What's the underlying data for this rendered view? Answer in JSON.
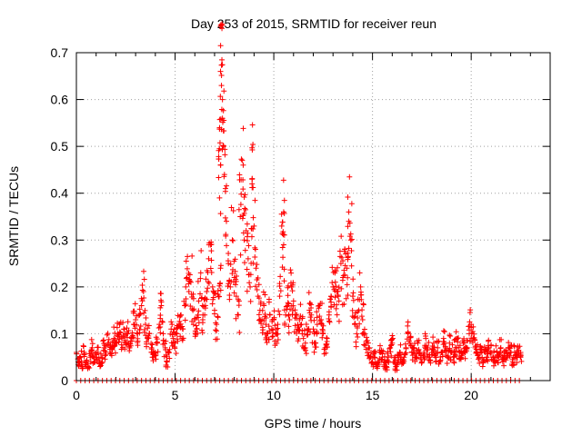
{
  "chart_data": {
    "type": "scatter",
    "title": "Day 253 of 2015, SRMTID for receiver reun",
    "xlabel": "GPS time / hours",
    "ylabel": "SRMTID / TECUs",
    "xlim": [
      0,
      24
    ],
    "ylim": [
      0,
      0.7
    ],
    "x_ticks": [
      "0",
      "5",
      "10",
      "15",
      "20"
    ],
    "x_tick_values": [
      0,
      5,
      10,
      15,
      20
    ],
    "y_ticks": [
      "0",
      "0.1",
      "0.2",
      "0.3",
      "0.4",
      "0.5",
      "0.6",
      "0.7"
    ],
    "y_tick_values": [
      0,
      0.1,
      0.2,
      0.3,
      0.4,
      0.5,
      0.6,
      0.7
    ],
    "grid": true,
    "marker": "+",
    "color": "#ff0000",
    "series": [
      {
        "name": "SRMTID",
        "points": [
          [
            0.0,
            0.06
          ],
          [
            0.1,
            0.04
          ],
          [
            0.2,
            0.05
          ],
          [
            0.3,
            0.03
          ],
          [
            0.4,
            0.06
          ],
          [
            0.5,
            0.04
          ],
          [
            0.6,
            0.03
          ],
          [
            0.7,
            0.05
          ],
          [
            0.8,
            0.07
          ],
          [
            0.9,
            0.04
          ],
          [
            1.0,
            0.05
          ],
          [
            1.1,
            0.06
          ],
          [
            1.2,
            0.04
          ],
          [
            1.3,
            0.05
          ],
          [
            1.4,
            0.07
          ],
          [
            1.5,
            0.06
          ],
          [
            1.6,
            0.08
          ],
          [
            1.7,
            0.06
          ],
          [
            1.8,
            0.07
          ],
          [
            1.9,
            0.09
          ],
          [
            2.0,
            0.08
          ],
          [
            2.1,
            0.1
          ],
          [
            2.2,
            0.12
          ],
          [
            2.3,
            0.09
          ],
          [
            2.4,
            0.11
          ],
          [
            2.5,
            0.08
          ],
          [
            2.6,
            0.1
          ],
          [
            2.7,
            0.07
          ],
          [
            2.8,
            0.09
          ],
          [
            2.9,
            0.12
          ],
          [
            3.0,
            0.13
          ],
          [
            3.1,
            0.1
          ],
          [
            3.2,
            0.14
          ],
          [
            3.3,
            0.16
          ],
          [
            3.4,
            0.19
          ],
          [
            3.5,
            0.12
          ],
          [
            3.6,
            0.09
          ],
          [
            3.7,
            0.1
          ],
          [
            3.8,
            0.07
          ],
          [
            3.9,
            0.05
          ],
          [
            4.0,
            0.06
          ],
          [
            4.1,
            0.08
          ],
          [
            4.2,
            0.12
          ],
          [
            4.3,
            0.16
          ],
          [
            4.4,
            0.1
          ],
          [
            4.5,
            0.07
          ],
          [
            4.6,
            0.04
          ],
          [
            4.7,
            0.06
          ],
          [
            4.8,
            0.11
          ],
          [
            4.9,
            0.09
          ],
          [
            5.0,
            0.08
          ],
          [
            5.1,
            0.1
          ],
          [
            5.2,
            0.12
          ],
          [
            5.3,
            0.14
          ],
          [
            5.4,
            0.11
          ],
          [
            5.5,
            0.16
          ],
          [
            5.6,
            0.22
          ],
          [
            5.7,
            0.19
          ],
          [
            5.8,
            0.21
          ],
          [
            5.9,
            0.15
          ],
          [
            6.0,
            0.13
          ],
          [
            6.1,
            0.11
          ],
          [
            6.2,
            0.17
          ],
          [
            6.3,
            0.23
          ],
          [
            6.4,
            0.13
          ],
          [
            6.5,
            0.14
          ],
          [
            6.6,
            0.19
          ],
          [
            6.7,
            0.26
          ],
          [
            6.8,
            0.29
          ],
          [
            6.9,
            0.2
          ],
          [
            7.0,
            0.15
          ],
          [
            7.1,
            0.12
          ],
          [
            7.2,
            0.18
          ],
          [
            7.3,
            0.24
          ],
          [
            7.4,
            0.6
          ],
          [
            7.5,
            0.44
          ],
          [
            7.6,
            0.34
          ],
          [
            7.7,
            0.25
          ],
          [
            7.8,
            0.2
          ],
          [
            7.9,
            0.3
          ],
          [
            8.0,
            0.22
          ],
          [
            8.1,
            0.18
          ],
          [
            8.2,
            0.14
          ],
          [
            8.3,
            0.35
          ],
          [
            8.4,
            0.47
          ],
          [
            8.5,
            0.3
          ],
          [
            8.6,
            0.32
          ],
          [
            8.7,
            0.26
          ],
          [
            8.8,
            0.2
          ],
          [
            8.9,
            0.42
          ],
          [
            9.0,
            0.33
          ],
          [
            9.1,
            0.24
          ],
          [
            9.2,
            0.18
          ],
          [
            9.3,
            0.15
          ],
          [
            9.4,
            0.13
          ],
          [
            9.5,
            0.16
          ],
          [
            9.6,
            0.12
          ],
          [
            9.7,
            0.1
          ],
          [
            9.8,
            0.14
          ],
          [
            9.9,
            0.11
          ],
          [
            10.0,
            0.13
          ],
          [
            10.1,
            0.1
          ],
          [
            10.2,
            0.12
          ],
          [
            10.3,
            0.18
          ],
          [
            10.4,
            0.33
          ],
          [
            10.5,
            0.29
          ],
          [
            10.6,
            0.14
          ],
          [
            10.7,
            0.16
          ],
          [
            10.8,
            0.13
          ],
          [
            10.9,
            0.2
          ],
          [
            11.0,
            0.17
          ],
          [
            11.1,
            0.14
          ],
          [
            11.2,
            0.11
          ],
          [
            11.3,
            0.13
          ],
          [
            11.4,
            0.12
          ],
          [
            11.5,
            0.09
          ],
          [
            11.6,
            0.08
          ],
          [
            11.7,
            0.11
          ],
          [
            11.8,
            0.15
          ],
          [
            11.9,
            0.14
          ],
          [
            12.0,
            0.11
          ],
          [
            12.1,
            0.08
          ],
          [
            12.2,
            0.12
          ],
          [
            12.3,
            0.16
          ],
          [
            12.4,
            0.13
          ],
          [
            12.5,
            0.1
          ],
          [
            12.6,
            0.07
          ],
          [
            12.7,
            0.09
          ],
          [
            12.8,
            0.14
          ],
          [
            12.9,
            0.18
          ],
          [
            13.0,
            0.2
          ],
          [
            13.1,
            0.23
          ],
          [
            13.2,
            0.19
          ],
          [
            13.3,
            0.17
          ],
          [
            13.4,
            0.25
          ],
          [
            13.5,
            0.22
          ],
          [
            13.6,
            0.28
          ],
          [
            13.7,
            0.24
          ],
          [
            13.8,
            0.34
          ],
          [
            13.9,
            0.3
          ],
          [
            14.0,
            0.18
          ],
          [
            14.1,
            0.12
          ],
          [
            14.2,
            0.1
          ],
          [
            14.3,
            0.15
          ],
          [
            14.4,
            0.2
          ],
          [
            14.5,
            0.13
          ],
          [
            14.6,
            0.1
          ],
          [
            14.7,
            0.08
          ],
          [
            14.8,
            0.07
          ],
          [
            14.9,
            0.05
          ],
          [
            15.0,
            0.04
          ],
          [
            15.1,
            0.05
          ],
          [
            15.2,
            0.03
          ],
          [
            15.3,
            0.04
          ],
          [
            15.4,
            0.06
          ],
          [
            15.5,
            0.05
          ],
          [
            15.6,
            0.04
          ],
          [
            15.7,
            0.03
          ],
          [
            15.8,
            0.05
          ],
          [
            15.9,
            0.07
          ],
          [
            16.0,
            0.08
          ],
          [
            16.1,
            0.04
          ],
          [
            16.2,
            0.03
          ],
          [
            16.3,
            0.05
          ],
          [
            16.4,
            0.06
          ],
          [
            16.5,
            0.04
          ],
          [
            16.6,
            0.05
          ],
          [
            16.7,
            0.07
          ],
          [
            16.8,
            0.1
          ],
          [
            16.9,
            0.08
          ],
          [
            17.0,
            0.06
          ],
          [
            17.1,
            0.07
          ],
          [
            17.2,
            0.05
          ],
          [
            17.3,
            0.08
          ],
          [
            17.4,
            0.06
          ],
          [
            17.5,
            0.04
          ],
          [
            17.6,
            0.06
          ],
          [
            17.7,
            0.09
          ],
          [
            17.8,
            0.07
          ],
          [
            17.9,
            0.05
          ],
          [
            18.0,
            0.06
          ],
          [
            18.1,
            0.08
          ],
          [
            18.2,
            0.05
          ],
          [
            18.3,
            0.07
          ],
          [
            18.4,
            0.04
          ],
          [
            18.5,
            0.06
          ],
          [
            18.6,
            0.09
          ],
          [
            18.7,
            0.07
          ],
          [
            18.8,
            0.05
          ],
          [
            18.9,
            0.08
          ],
          [
            19.0,
            0.06
          ],
          [
            19.1,
            0.05
          ],
          [
            19.2,
            0.07
          ],
          [
            19.3,
            0.09
          ],
          [
            19.4,
            0.06
          ],
          [
            19.5,
            0.05
          ],
          [
            19.6,
            0.08
          ],
          [
            19.7,
            0.06
          ],
          [
            19.8,
            0.07
          ],
          [
            19.9,
            0.1
          ],
          [
            20.0,
            0.12
          ],
          [
            20.1,
            0.09
          ],
          [
            20.2,
            0.07
          ],
          [
            20.3,
            0.06
          ],
          [
            20.4,
            0.05
          ],
          [
            20.5,
            0.07
          ],
          [
            20.6,
            0.04
          ],
          [
            20.7,
            0.06
          ],
          [
            20.8,
            0.05
          ],
          [
            20.9,
            0.07
          ],
          [
            21.0,
            0.06
          ],
          [
            21.1,
            0.05
          ],
          [
            21.2,
            0.04
          ],
          [
            21.3,
            0.06
          ],
          [
            21.4,
            0.05
          ],
          [
            21.5,
            0.07
          ],
          [
            21.6,
            0.04
          ],
          [
            21.7,
            0.06
          ],
          [
            21.8,
            0.05
          ],
          [
            21.9,
            0.07
          ],
          [
            22.0,
            0.06
          ],
          [
            22.1,
            0.04
          ],
          [
            22.2,
            0.06
          ],
          [
            22.3,
            0.05
          ],
          [
            22.4,
            0.06
          ],
          [
            22.5,
            0.05
          ],
          [
            7.3,
            0.66
          ],
          [
            7.35,
            0.63
          ],
          [
            7.4,
            0.56
          ],
          [
            7.45,
            0.5
          ],
          [
            7.3,
            0.46
          ],
          [
            7.25,
            0.39
          ],
          [
            8.45,
            0.46
          ],
          [
            8.9,
            0.43
          ],
          [
            10.5,
            0.36
          ],
          [
            13.8,
            0.36
          ]
        ]
      }
    ],
    "baseline_marker_value": 0
  }
}
